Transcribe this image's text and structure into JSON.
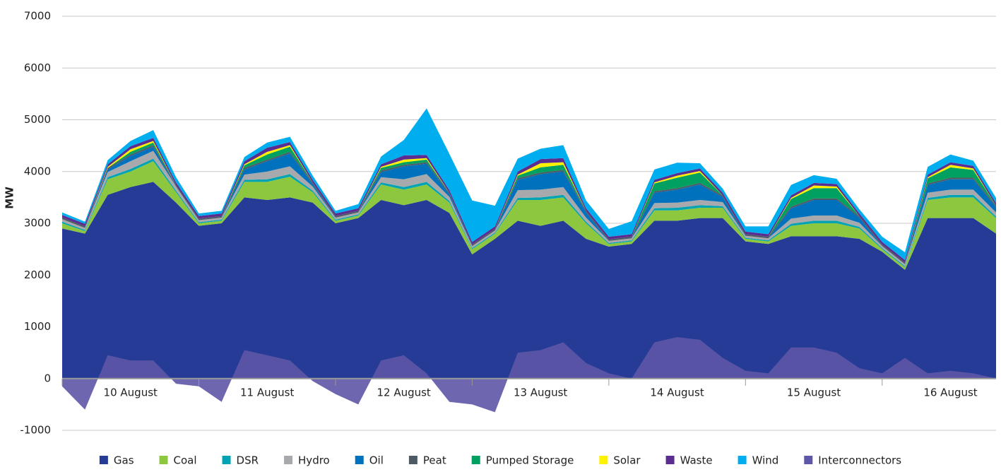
{
  "chart_data": {
    "type": "stacked-area",
    "ylabel": "MW",
    "ylim": [
      -1000,
      7000
    ],
    "yticks": [
      -1000,
      0,
      1000,
      2000,
      3000,
      4000,
      5000,
      6000,
      7000
    ],
    "grid": true,
    "legend": "bottom",
    "categories": [
      null,
      null,
      null,
      "10 August",
      null,
      null,
      null,
      null,
      null,
      "11 August",
      null,
      null,
      null,
      null,
      null,
      "12 August",
      null,
      null,
      null,
      null,
      null,
      "13 August",
      null,
      null,
      null,
      null,
      null,
      "14 August",
      null,
      null,
      null,
      null,
      null,
      "15 August",
      null,
      null,
      null,
      null,
      null,
      "16 August",
      null,
      null
    ],
    "series": [
      {
        "name": "Gas",
        "color": "#253b96",
        "values": [
          2900,
          2800,
          3550,
          3700,
          3800,
          3400,
          2950,
          3000,
          3500,
          3450,
          3500,
          3400,
          3000,
          3100,
          3450,
          3350,
          3450,
          3200,
          2400,
          2700,
          3050,
          2950,
          3050,
          2700,
          2550,
          2600,
          3050,
          3050,
          3100,
          3100,
          2650,
          2600,
          2750,
          2750,
          2750,
          2700,
          2450,
          2100,
          3100,
          3100,
          3100,
          2800
        ]
      },
      {
        "name": "Coal",
        "color": "#8dc63f",
        "values": [
          100,
          50,
          300,
          300,
          400,
          200,
          50,
          50,
          300,
          350,
          400,
          200,
          50,
          50,
          300,
          300,
          300,
          200,
          100,
          100,
          400,
          500,
          450,
          300,
          50,
          50,
          200,
          200,
          200,
          200,
          50,
          50,
          200,
          250,
          250,
          200,
          50,
          50,
          350,
          400,
          400,
          300
        ]
      },
      {
        "name": "DSR",
        "color": "#00a3b4",
        "values": [
          30,
          20,
          40,
          50,
          50,
          30,
          20,
          20,
          40,
          50,
          50,
          30,
          20,
          20,
          40,
          50,
          50,
          30,
          20,
          20,
          40,
          50,
          50,
          30,
          20,
          20,
          40,
          50,
          50,
          30,
          20,
          20,
          40,
          50,
          50,
          30,
          20,
          20,
          40,
          50,
          50,
          30
        ]
      },
      {
        "name": "Hydro",
        "color": "#a7a9ac",
        "values": [
          50,
          40,
          100,
          150,
          150,
          80,
          40,
          40,
          100,
          150,
          150,
          80,
          40,
          40,
          100,
          150,
          150,
          80,
          40,
          40,
          150,
          150,
          150,
          80,
          40,
          40,
          100,
          100,
          100,
          80,
          40,
          40,
          100,
          100,
          100,
          80,
          40,
          40,
          100,
          100,
          100,
          80
        ]
      },
      {
        "name": "Oil",
        "color": "#0071bc",
        "values": [
          0,
          0,
          50,
          100,
          80,
          0,
          0,
          0,
          100,
          200,
          250,
          50,
          0,
          0,
          100,
          250,
          200,
          50,
          0,
          0,
          200,
          300,
          300,
          100,
          0,
          0,
          200,
          250,
          300,
          100,
          0,
          0,
          200,
          300,
          300,
          100,
          0,
          0,
          150,
          200,
          200,
          100
        ]
      },
      {
        "name": "Peat",
        "color": "#4d5a66",
        "values": [
          30,
          30,
          30,
          30,
          30,
          30,
          30,
          30,
          30,
          30,
          30,
          30,
          30,
          30,
          30,
          30,
          30,
          30,
          30,
          30,
          30,
          30,
          30,
          30,
          30,
          30,
          30,
          30,
          30,
          30,
          30,
          30,
          30,
          30,
          30,
          30,
          30,
          30,
          30,
          30,
          30,
          30
        ]
      },
      {
        "name": "Pumped Storage",
        "color": "#00a060",
        "values": [
          0,
          0,
          0,
          50,
          50,
          0,
          0,
          0,
          50,
          100,
          100,
          0,
          0,
          0,
          50,
          50,
          50,
          0,
          0,
          0,
          50,
          100,
          100,
          0,
          0,
          0,
          150,
          200,
          200,
          0,
          0,
          0,
          150,
          200,
          200,
          0,
          0,
          0,
          100,
          200,
          150,
          0
        ]
      },
      {
        "name": "Solar",
        "color": "#fff200",
        "values": [
          0,
          0,
          20,
          50,
          30,
          0,
          0,
          0,
          20,
          50,
          30,
          0,
          0,
          0,
          20,
          50,
          30,
          0,
          0,
          0,
          20,
          80,
          50,
          0,
          0,
          0,
          20,
          40,
          30,
          0,
          0,
          0,
          20,
          50,
          30,
          0,
          0,
          0,
          20,
          50,
          30,
          0
        ]
      },
      {
        "name": "Waste",
        "color": "#5b2d90",
        "values": [
          50,
          50,
          50,
          60,
          60,
          50,
          50,
          50,
          60,
          80,
          60,
          50,
          50,
          50,
          50,
          80,
          60,
          50,
          50,
          50,
          60,
          80,
          80,
          50,
          50,
          50,
          50,
          50,
          50,
          50,
          50,
          50,
          50,
          50,
          50,
          50,
          50,
          50,
          50,
          50,
          50,
          50
        ]
      },
      {
        "name": "Wind",
        "color": "#00aeef",
        "values": [
          50,
          40,
          80,
          100,
          150,
          100,
          50,
          50,
          80,
          100,
          100,
          80,
          50,
          80,
          150,
          300,
          900,
          700,
          800,
          400,
          250,
          200,
          250,
          150,
          150,
          250,
          200,
          200,
          100,
          80,
          100,
          150,
          200,
          150,
          100,
          80,
          100,
          150,
          150,
          150,
          100,
          100
        ]
      },
      {
        "name": "Interconnectors",
        "color": "#5e56a6",
        "stacked": false,
        "values": [
          -150,
          -600,
          450,
          350,
          350,
          -100,
          -150,
          -450,
          550,
          450,
          350,
          -50,
          -300,
          -500,
          350,
          450,
          100,
          -450,
          -500,
          -650,
          500,
          550,
          700,
          300,
          100,
          0,
          700,
          800,
          750,
          400,
          150,
          100,
          600,
          600,
          500,
          200,
          100,
          400,
          100,
          150,
          100,
          0
        ]
      }
    ]
  }
}
